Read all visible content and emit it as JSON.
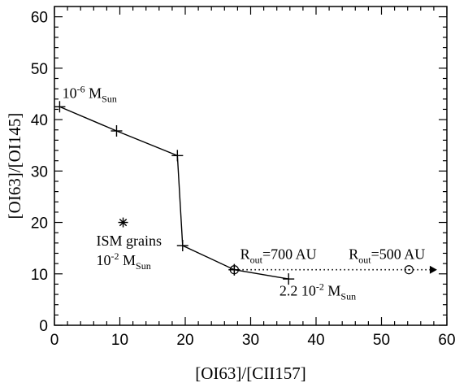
{
  "chart_data": {
    "type": "line",
    "xlabel": "[OI63]/[CII157]",
    "ylabel": "[OI63]/[OI145]",
    "xlim": [
      0,
      60
    ],
    "ylim": [
      0,
      62
    ],
    "x_ticks": [
      0,
      10,
      20,
      30,
      40,
      50,
      60
    ],
    "y_ticks": [
      0,
      10,
      20,
      30,
      40,
      50,
      60
    ],
    "grid": false,
    "series": [
      {
        "marker": "plus",
        "line": "solid",
        "points": [
          {
            "x": 0.8,
            "y": 42.5
          },
          {
            "x": 9.5,
            "y": 37.8
          },
          {
            "x": 18.8,
            "y": 33.0
          },
          {
            "x": 19.6,
            "y": 15.5
          },
          {
            "x": 27.5,
            "y": 10.8
          },
          {
            "x": 35.8,
            "y": 9.0
          }
        ]
      },
      {
        "marker": "none",
        "line": "dotted",
        "arrow": true,
        "points": [
          {
            "x": 27.5,
            "y": 10.8
          },
          {
            "x": 58.5,
            "y": 10.8
          }
        ]
      },
      {
        "marker": "circle-plus",
        "points": [
          {
            "x": 27.5,
            "y": 10.8
          }
        ]
      },
      {
        "marker": "circle",
        "points": [
          {
            "x": 54.2,
            "y": 10.8
          }
        ]
      },
      {
        "marker": "asterisk",
        "points": [
          {
            "x": 10.5,
            "y": 20.0
          }
        ]
      }
    ],
    "annotations": [
      {
        "id": "a1",
        "x": 1.2,
        "y": 44.2,
        "parts": [
          [
            "10",
            ""
          ],
          [
            "-6",
            "sup"
          ],
          [
            " M",
            ""
          ],
          [
            "Sun",
            "sub"
          ]
        ]
      },
      {
        "id": "a2",
        "x": 6.4,
        "y": 15.5,
        "parts": [
          [
            "ISM grains",
            ""
          ]
        ]
      },
      {
        "id": "a3",
        "x": 6.4,
        "y": 11.7,
        "parts": [
          [
            "10",
            ""
          ],
          [
            "-2",
            "sup"
          ],
          [
            " M",
            ""
          ],
          [
            "Sun",
            "sub"
          ]
        ]
      },
      {
        "id": "a4",
        "x": 28.4,
        "y": 12.9,
        "parts": [
          [
            "R",
            ""
          ],
          [
            "out",
            "sub"
          ],
          [
            "=700 AU",
            ""
          ]
        ]
      },
      {
        "id": "a5",
        "x": 34.4,
        "y": 5.8,
        "parts": [
          [
            "2.2 10",
            ""
          ],
          [
            "-2",
            "sup"
          ],
          [
            " M",
            ""
          ],
          [
            "Sun",
            "sub"
          ]
        ]
      },
      {
        "id": "a6",
        "x": 45.0,
        "y": 12.9,
        "parts": [
          [
            "R",
            ""
          ],
          [
            "out",
            "sub"
          ],
          [
            "=500 AU",
            ""
          ]
        ]
      }
    ]
  }
}
